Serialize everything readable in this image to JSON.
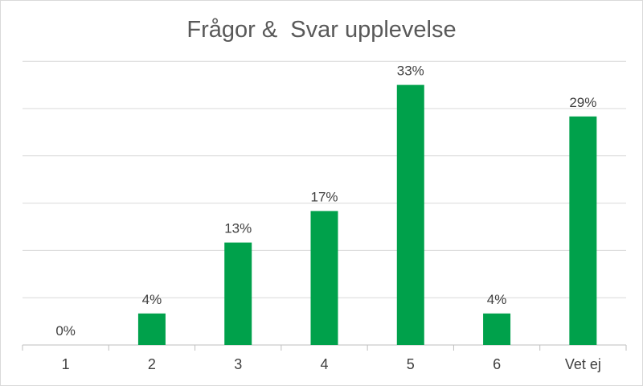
{
  "chart_data": {
    "type": "bar",
    "title": "Frågor &  Svar upplevelse",
    "categories": [
      "1",
      "2",
      "3",
      "4",
      "5",
      "6",
      "Vet ej"
    ],
    "values": [
      0,
      4,
      13,
      17,
      33,
      4,
      29
    ],
    "data_labels": [
      "0%",
      "4%",
      "13%",
      "17%",
      "33%",
      "4%",
      "29%"
    ],
    "unit": "%",
    "ylim": [
      0,
      36
    ],
    "y_gridline_step": 6,
    "grid": true,
    "legend": "none",
    "bar_color": "#00a14b",
    "gridline_color": "#d9d9d9",
    "axis_color": "#bfbfbf",
    "text_color": "#404040",
    "title_color": "#595959"
  }
}
